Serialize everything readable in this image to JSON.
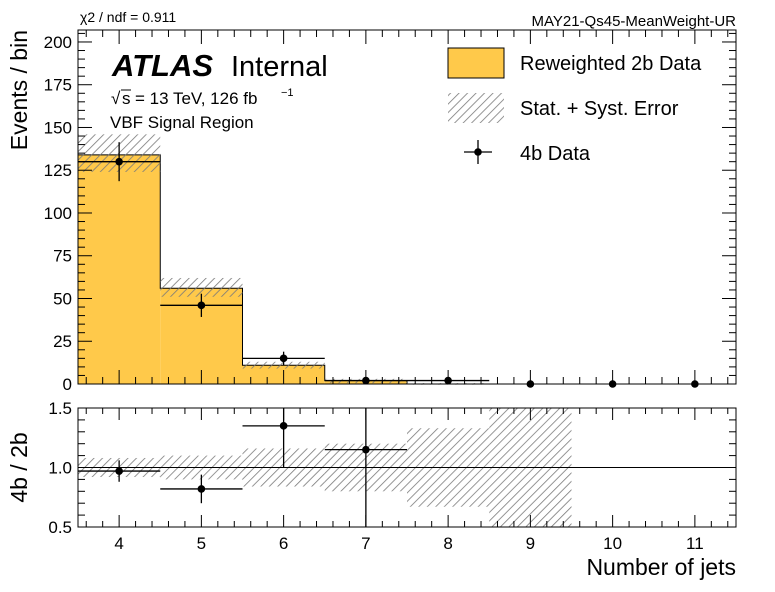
{
  "header": {
    "chi2_text": "χ2 / ndf = 0.911",
    "tag": "MAY21-Qs45-MeanWeight-UR"
  },
  "labels": {
    "atlas": "ATLAS",
    "internal": "Internal",
    "sqrt_s": "s",
    "energy": "= 13 TeV, 126 fb",
    "energy_sup": "−1",
    "region": "VBF Signal Region"
  },
  "legend": {
    "reweighted": "Reweighted 2b Data",
    "error": "Stat. + Syst. Error",
    "data4b": "4b Data"
  },
  "colors": {
    "reweighted_fill": "#ffc94a",
    "hatch": "#808080",
    "data": "#000000"
  },
  "chart_data": [
    {
      "type": "bar",
      "panel": "main",
      "ylabel": "Events / bin",
      "xlim": [
        3.5,
        11.5
      ],
      "ylim": [
        0,
        207
      ],
      "yticks": [
        0,
        25,
        50,
        75,
        100,
        125,
        150,
        175,
        200
      ],
      "series": [
        {
          "name": "Reweighted 2b Data",
          "style": "filled histogram",
          "x": [
            4,
            5,
            6,
            7,
            8,
            9,
            10,
            11
          ],
          "values": [
            134,
            56,
            11,
            2,
            0,
            0,
            0,
            0
          ],
          "error_band_low": [
            124,
            51,
            9,
            0.5,
            0,
            0,
            0,
            0
          ],
          "error_band_high": [
            146,
            62,
            13,
            3,
            0.5,
            0,
            0,
            0
          ]
        },
        {
          "name": "4b Data",
          "style": "points with error bars",
          "x": [
            4,
            5,
            6,
            7,
            8,
            9,
            10,
            11
          ],
          "values": [
            130,
            46,
            15,
            2,
            2,
            0,
            0,
            0
          ],
          "yerr": [
            11.4,
            6.8,
            3.9,
            1.4,
            1.4,
            0,
            0,
            0
          ]
        }
      ]
    },
    {
      "type": "scatter",
      "panel": "ratio",
      "xlabel": "Number of jets",
      "ylabel": "4b / 2b",
      "xlim": [
        3.5,
        11.5
      ],
      "ylim": [
        0.5,
        1.5
      ],
      "xticks": [
        4,
        5,
        6,
        7,
        8,
        9,
        10,
        11
      ],
      "yticks": [
        "0.5",
        "1.0",
        "1.5"
      ],
      "reference_line": 1.0,
      "error_band": {
        "x": [
          4,
          5,
          6,
          7,
          8,
          9
        ],
        "low": [
          0.92,
          0.9,
          0.84,
          0.8,
          0.67,
          0.5
        ],
        "high": [
          1.08,
          1.1,
          1.16,
          1.2,
          1.33,
          1.5
        ]
      },
      "series": [
        {
          "name": "4b / 2b",
          "x": [
            4,
            5,
            6,
            7
          ],
          "values": [
            0.97,
            0.82,
            1.35,
            1.15
          ],
          "yerr": [
            0.09,
            0.12,
            0.35,
            0.8
          ]
        }
      ]
    }
  ]
}
